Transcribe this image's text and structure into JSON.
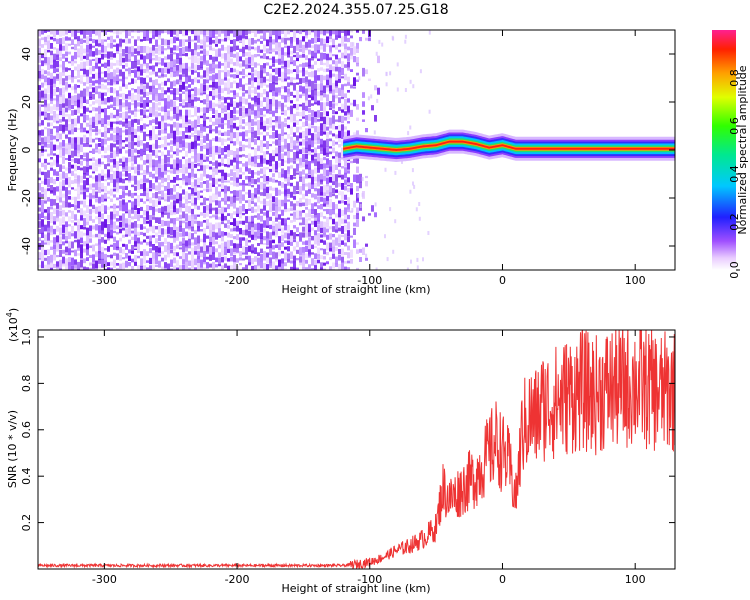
{
  "title": "C2E2.2024.355.07.25.G18",
  "chart_data": [
    {
      "type": "heatmap",
      "xlabel": "Height of straight line (km)",
      "ylabel": "Frequency (Hz)",
      "xlim": [
        -350,
        130
      ],
      "ylim": [
        -50,
        50
      ],
      "xticks": [
        -300,
        -200,
        -100,
        0,
        100
      ],
      "yticks": [
        -40,
        -20,
        0,
        20,
        40
      ],
      "noise_region": {
        "x_from": -350,
        "x_to": -115
      },
      "signal_line": {
        "x": [
          -120,
          -110,
          -100,
          -90,
          -80,
          -70,
          -60,
          -50,
          -40,
          -30,
          -20,
          -10,
          0,
          10,
          20,
          40,
          60,
          80,
          100,
          120,
          130
        ],
        "freq_hz": [
          0.5,
          1.5,
          1,
          0.5,
          0,
          0.5,
          1.5,
          2,
          3.5,
          3.5,
          2.5,
          1,
          2,
          0.5,
          0.5,
          0.5,
          0.5,
          0.5,
          0.5,
          0.5,
          0.5
        ]
      },
      "colorbar": {
        "label": "Normalized spectral amplitude",
        "ticks": [
          0.0,
          0.2,
          0.4,
          0.6,
          0.8
        ],
        "range": [
          0,
          1
        ]
      }
    },
    {
      "type": "line",
      "xlabel": "Height of straight line (km)",
      "ylabel": "SNR (10 * v/v)",
      "multiplier_label": "(x10",
      "multiplier_exp": "4",
      "xlim": [
        -350,
        130
      ],
      "ylim": [
        0,
        1.03
      ],
      "xticks": [
        -300,
        -200,
        -100,
        0,
        100
      ],
      "yticks": [
        0.2,
        0.4,
        0.6,
        0.8,
        1.0
      ],
      "color": "#ee3333",
      "series": [
        {
          "x": [
            -350,
            -300,
            -250,
            -200,
            -150,
            -120,
            -110,
            -100,
            -90,
            -80,
            -70,
            -60,
            -50,
            -45,
            -40,
            -35,
            -30,
            -25,
            -20,
            -15,
            -10,
            -5,
            0,
            5,
            10,
            15,
            20,
            25,
            30,
            40,
            50,
            60,
            70,
            80,
            90,
            100,
            110,
            120,
            130
          ],
          "values": [
            0.015,
            0.015,
            0.015,
            0.015,
            0.015,
            0.015,
            0.02,
            0.03,
            0.05,
            0.08,
            0.1,
            0.13,
            0.18,
            0.35,
            0.3,
            0.32,
            0.35,
            0.38,
            0.4,
            0.45,
            0.5,
            0.55,
            0.5,
            0.45,
            0.3,
            0.6,
            0.65,
            0.65,
            0.7,
            0.72,
            0.75,
            0.77,
            0.75,
            0.78,
            0.78,
            0.8,
            0.78,
            0.76,
            0.77
          ]
        }
      ]
    }
  ]
}
